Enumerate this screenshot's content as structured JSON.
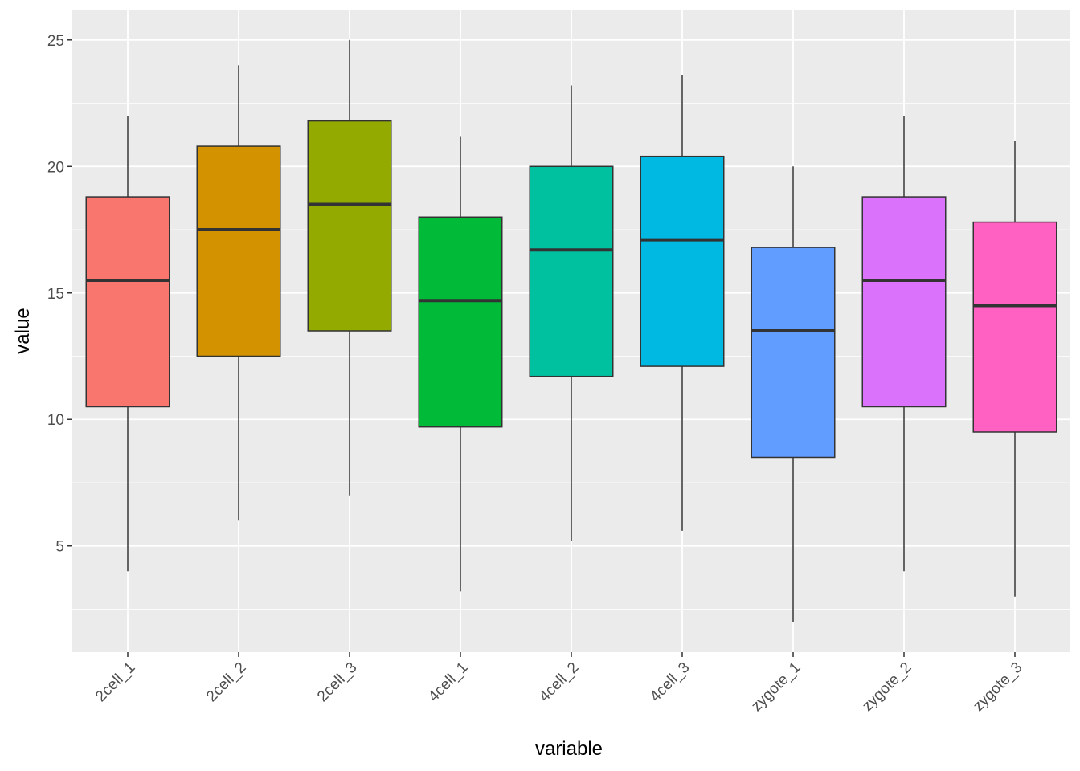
{
  "chart_data": {
    "type": "boxplot",
    "xlabel": "variable",
    "ylabel": "value",
    "ylim": [
      0.8,
      26.2
    ],
    "y_ticks": [
      5,
      10,
      15,
      20,
      25
    ],
    "grid": true,
    "legend": "none",
    "categories": [
      "2cell_1",
      "2cell_2",
      "2cell_3",
      "4cell_1",
      "4cell_2",
      "4cell_3",
      "zygote_1",
      "zygote_2",
      "zygote_3"
    ],
    "boxes": [
      {
        "label": "2cell_1",
        "min": 4.0,
        "q1": 10.5,
        "median": 15.5,
        "q3": 18.8,
        "max": 22.0,
        "color": "#F8766D"
      },
      {
        "label": "2cell_2",
        "min": 6.0,
        "q1": 12.5,
        "median": 17.5,
        "q3": 20.8,
        "max": 24.0,
        "color": "#D39200"
      },
      {
        "label": "2cell_3",
        "min": 7.0,
        "q1": 13.5,
        "median": 18.5,
        "q3": 21.8,
        "max": 25.0,
        "color": "#93AA00"
      },
      {
        "label": "4cell_1",
        "min": 3.2,
        "q1": 9.7,
        "median": 14.7,
        "q3": 18.0,
        "max": 21.2,
        "color": "#00BA38"
      },
      {
        "label": "4cell_2",
        "min": 5.2,
        "q1": 11.7,
        "median": 16.7,
        "q3": 20.0,
        "max": 23.2,
        "color": "#00C19F"
      },
      {
        "label": "4cell_3",
        "min": 5.6,
        "q1": 12.1,
        "median": 17.1,
        "q3": 20.4,
        "max": 23.6,
        "color": "#00B9E3"
      },
      {
        "label": "zygote_1",
        "min": 2.0,
        "q1": 8.5,
        "median": 13.5,
        "q3": 16.8,
        "max": 20.0,
        "color": "#619CFF"
      },
      {
        "label": "zygote_2",
        "min": 4.0,
        "q1": 10.5,
        "median": 15.5,
        "q3": 18.8,
        "max": 22.0,
        "color": "#DB72FB"
      },
      {
        "label": "zygote_3",
        "min": 3.0,
        "q1": 9.5,
        "median": 14.5,
        "q3": 17.8,
        "max": 21.0,
        "color": "#FF61C3"
      }
    ]
  }
}
